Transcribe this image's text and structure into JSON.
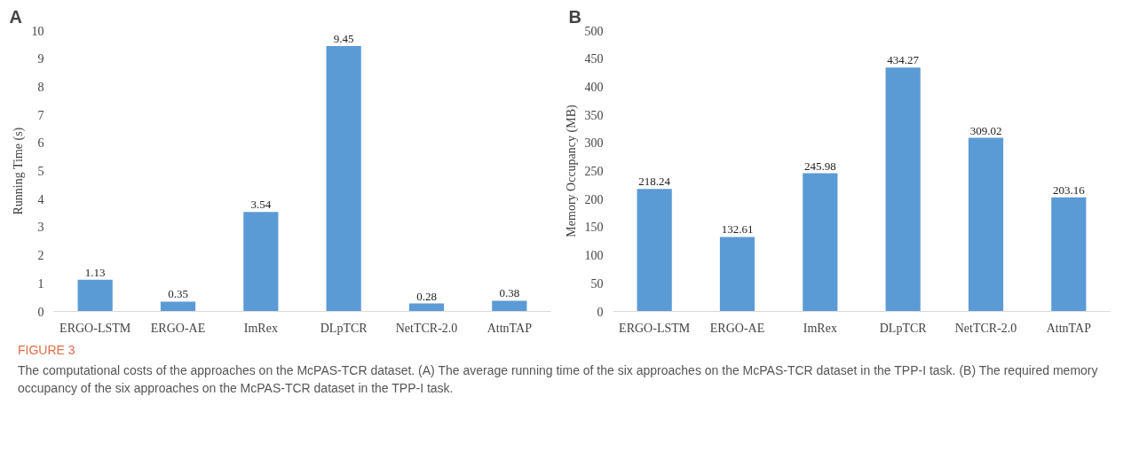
{
  "chart_data": [
    {
      "type": "bar",
      "title": "A",
      "ylabel": "Running Time (s)",
      "categories": [
        "ERGO-LSTM",
        "ERGO-AE",
        "ImRex",
        "DLpTCR",
        "NetTCR-2.0",
        "AttnTAP"
      ],
      "values": [
        1.13,
        0.35,
        3.54,
        9.45,
        0.28,
        0.38
      ],
      "color": "#5b9bd5",
      "ylim": [
        0,
        10
      ],
      "yticks": [
        0,
        1,
        2,
        3,
        4,
        5,
        6,
        7,
        8,
        9,
        10
      ],
      "data_labels": true,
      "grid": false
    },
    {
      "type": "bar",
      "title": "B",
      "ylabel": "Memory Occupancy (MB)",
      "categories": [
        "ERGO-LSTM",
        "ERGO-AE",
        "ImRex",
        "DLpTCR",
        "NetTCR-2.0",
        "AttnTAP"
      ],
      "values": [
        218.24,
        132.61,
        245.98,
        434.27,
        309.02,
        203.16
      ],
      "color": "#5b9bd5",
      "ylim": [
        0,
        500
      ],
      "yticks": [
        0,
        50,
        100,
        150,
        200,
        250,
        300,
        350,
        400,
        450,
        500
      ],
      "data_labels": true,
      "grid": false,
      "annotations": [
        "FIGURE 3",
        "The computational costs of the approaches on the McPAS-TCR dataset. (A) The average running time of the six approaches on the McPAS-TCR dataset in the TPP-I task. (B) The required memory occupancy of the six approaches on the McPAS-TCR dataset in the TPP-I task."
      ]
    }
  ]
}
